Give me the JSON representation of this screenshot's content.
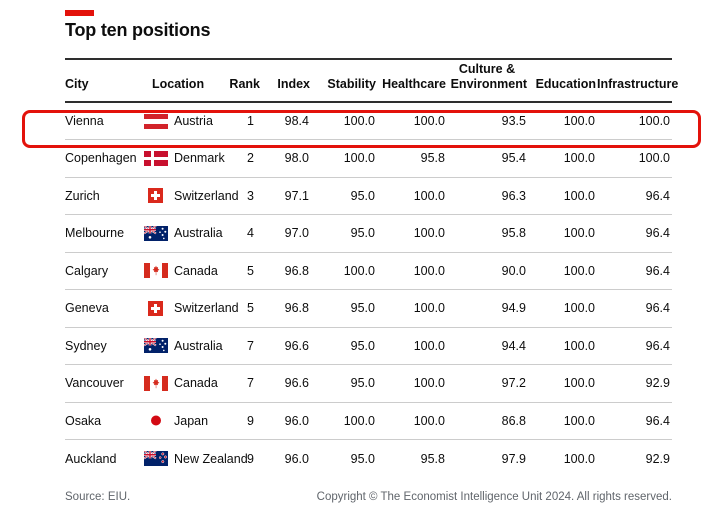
{
  "title": "Top ten positions",
  "colors": {
    "accent_red": "#E3120B",
    "highlight_border": "#E3120B",
    "rule_dark": "#2e2e2e",
    "separator_gray": "#cccccc",
    "footer_gray": "#60656b"
  },
  "table": {
    "headers": {
      "city": "City",
      "location": "Location",
      "rank": "Rank",
      "index": "Index",
      "stability": "Stability",
      "healthcare": "Healthcare",
      "culture_line1": "Culture &",
      "culture_line2": "Environment",
      "education": "Education",
      "infrastructure": "Infrastructure"
    },
    "rows": [
      {
        "city": "Vienna",
        "flag": "austria",
        "flag_icon": "austria-flag-icon",
        "location": "Austria",
        "rank": "1",
        "index": "98.4",
        "stability": "100.0",
        "healthcare": "100.0",
        "culture_environment": "93.5",
        "education": "100.0",
        "infrastructure": "100.0",
        "highlighted": true
      },
      {
        "city": "Copenhagen",
        "flag": "denmark",
        "flag_icon": "denmark-flag-icon",
        "location": "Denmark",
        "rank": "2",
        "index": "98.0",
        "stability": "100.0",
        "healthcare": "95.8",
        "culture_environment": "95.4",
        "education": "100.0",
        "infrastructure": "100.0",
        "highlighted": false
      },
      {
        "city": "Zurich",
        "flag": "switzerland",
        "flag_icon": "switzerland-flag-icon",
        "location": "Switzerland",
        "rank": "3",
        "index": "97.1",
        "stability": "95.0",
        "healthcare": "100.0",
        "culture_environment": "96.3",
        "education": "100.0",
        "infrastructure": "96.4",
        "highlighted": false
      },
      {
        "city": "Melbourne",
        "flag": "australia",
        "flag_icon": "australia-flag-icon",
        "location": "Australia",
        "rank": "4",
        "index": "97.0",
        "stability": "95.0",
        "healthcare": "100.0",
        "culture_environment": "95.8",
        "education": "100.0",
        "infrastructure": "96.4",
        "highlighted": false
      },
      {
        "city": "Calgary",
        "flag": "canada",
        "flag_icon": "canada-flag-icon",
        "location": "Canada",
        "rank": "5",
        "index": "96.8",
        "stability": "100.0",
        "healthcare": "100.0",
        "culture_environment": "90.0",
        "education": "100.0",
        "infrastructure": "96.4",
        "highlighted": false
      },
      {
        "city": "Geneva",
        "flag": "switzerland",
        "flag_icon": "switzerland-flag-icon",
        "location": "Switzerland",
        "rank": "5",
        "index": "96.8",
        "stability": "95.0",
        "healthcare": "100.0",
        "culture_environment": "94.9",
        "education": "100.0",
        "infrastructure": "96.4",
        "highlighted": false
      },
      {
        "city": "Sydney",
        "flag": "australia",
        "flag_icon": "australia-flag-icon",
        "location": "Australia",
        "rank": "7",
        "index": "96.6",
        "stability": "95.0",
        "healthcare": "100.0",
        "culture_environment": "94.4",
        "education": "100.0",
        "infrastructure": "96.4",
        "highlighted": false
      },
      {
        "city": "Vancouver",
        "flag": "canada",
        "flag_icon": "canada-flag-icon",
        "location": "Canada",
        "rank": "7",
        "index": "96.6",
        "stability": "95.0",
        "healthcare": "100.0",
        "culture_environment": "97.2",
        "education": "100.0",
        "infrastructure": "92.9",
        "highlighted": false
      },
      {
        "city": "Osaka",
        "flag": "japan",
        "flag_icon": "japan-flag-icon",
        "location": "Japan",
        "rank": "9",
        "index": "96.0",
        "stability": "100.0",
        "healthcare": "100.0",
        "culture_environment": "86.8",
        "education": "100.0",
        "infrastructure": "96.4",
        "highlighted": false
      },
      {
        "city": "Auckland",
        "flag": "new_zealand",
        "flag_icon": "new-zealand-flag-icon",
        "location": "New Zealand",
        "rank": "9",
        "index": "96.0",
        "stability": "95.0",
        "healthcare": "95.8",
        "culture_environment": "97.9",
        "education": "100.0",
        "infrastructure": "92.9",
        "highlighted": false
      }
    ]
  },
  "footer": {
    "source": "Source: EIU.",
    "copyright": "Copyright © The Economist Intelligence Unit 2024. All rights reserved."
  },
  "chart_data": {
    "type": "table",
    "title": "Top ten positions",
    "columns": [
      "City",
      "Location",
      "Rank",
      "Index",
      "Stability",
      "Healthcare",
      "Culture & Environment",
      "Education",
      "Infrastructure"
    ],
    "rows": [
      [
        "Vienna",
        "Austria",
        1,
        98.4,
        100.0,
        100.0,
        93.5,
        100.0,
        100.0
      ],
      [
        "Copenhagen",
        "Denmark",
        2,
        98.0,
        100.0,
        95.8,
        95.4,
        100.0,
        100.0
      ],
      [
        "Zurich",
        "Switzerland",
        3,
        97.1,
        95.0,
        100.0,
        96.3,
        100.0,
        96.4
      ],
      [
        "Melbourne",
        "Australia",
        4,
        97.0,
        95.0,
        100.0,
        95.8,
        100.0,
        96.4
      ],
      [
        "Calgary",
        "Canada",
        5,
        96.8,
        100.0,
        100.0,
        90.0,
        100.0,
        96.4
      ],
      [
        "Geneva",
        "Switzerland",
        5,
        96.8,
        95.0,
        100.0,
        94.9,
        100.0,
        96.4
      ],
      [
        "Sydney",
        "Australia",
        7,
        96.6,
        95.0,
        100.0,
        94.4,
        100.0,
        96.4
      ],
      [
        "Vancouver",
        "Canada",
        7,
        96.6,
        95.0,
        100.0,
        97.2,
        100.0,
        92.9
      ],
      [
        "Osaka",
        "Japan",
        9,
        96.0,
        100.0,
        100.0,
        86.8,
        100.0,
        96.4
      ],
      [
        "Auckland",
        "New Zealand",
        9,
        96.0,
        95.0,
        95.8,
        97.9,
        100.0,
        92.9
      ]
    ],
    "highlighted_row": "Vienna",
    "source": "Source: EIU.",
    "copyright": "Copyright © The Economist Intelligence Unit 2024. All rights reserved."
  }
}
